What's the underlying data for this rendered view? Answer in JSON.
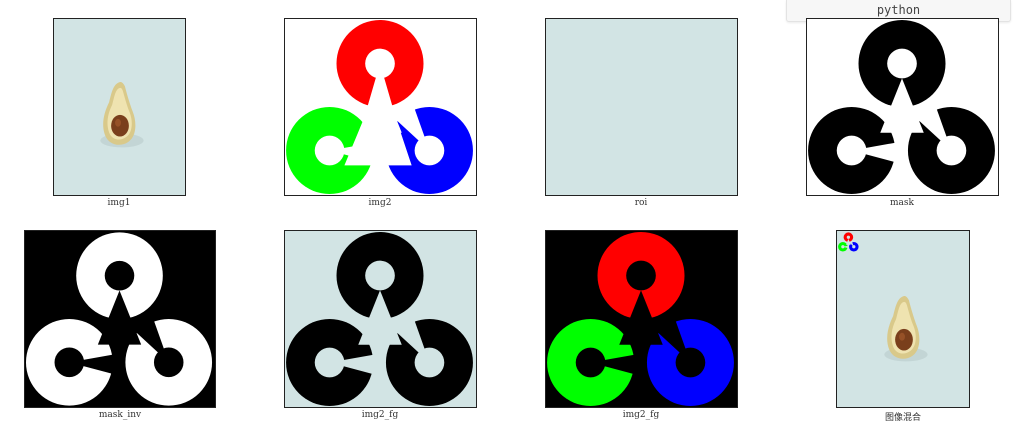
{
  "code_block": {
    "language_label": "python"
  },
  "colors": {
    "background_light": "#d2e4e4",
    "red": "#ff0000",
    "green": "#00ff00",
    "blue": "#0000ff",
    "black": "#000000",
    "white": "#ffffff"
  },
  "figures": [
    {
      "caption": "img1",
      "content": "avocado-on-light-background"
    },
    {
      "caption": "img2",
      "content": "opencv-logo-color-on-white"
    },
    {
      "caption": "roi",
      "content": "plain-light-region"
    },
    {
      "caption": "mask",
      "content": "black-logo-on-white"
    },
    {
      "caption": "mask_inv",
      "content": "white-logo-on-black"
    },
    {
      "caption": "img2_fg",
      "content": "black-logo-on-light-background"
    },
    {
      "caption": "img2_fg",
      "content": "color-logo-on-black"
    },
    {
      "caption": "图像混合",
      "content": "avocado-with-small-logo"
    }
  ]
}
